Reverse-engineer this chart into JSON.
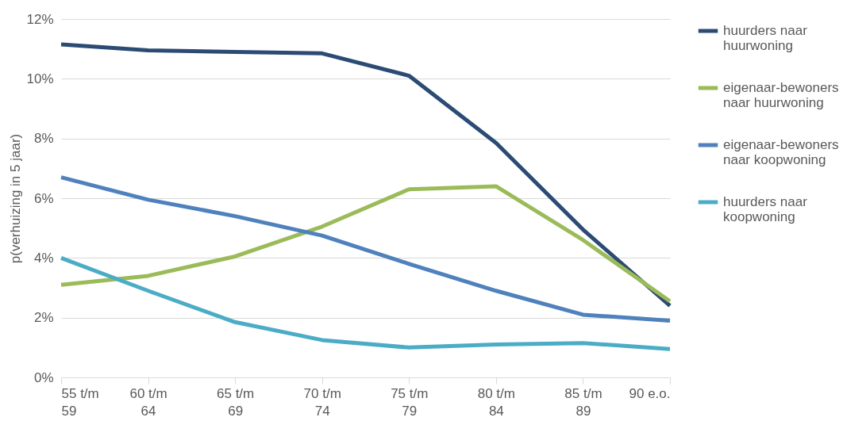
{
  "chart_data": {
    "type": "line",
    "ylabel": "p(verhuizing in 5 jaar)",
    "categories": [
      "55 t/m\n59",
      "60 t/m\n64",
      "65 t/m\n69",
      "70 t/m\n74",
      "75 t/m\n79",
      "80 t/m\n84",
      "85 t/m\n89",
      "90 e.o."
    ],
    "series": [
      {
        "name": "huurders naar huurwoning",
        "color": "#2c4b74",
        "values": [
          11.15,
          10.95,
          10.9,
          10.85,
          10.1,
          7.85,
          4.95,
          2.4
        ]
      },
      {
        "name": "eigenaar-bewoners naar huurwoning",
        "color": "#9bbb59",
        "values": [
          3.1,
          3.4,
          4.05,
          5.05,
          6.3,
          6.4,
          4.6,
          2.55
        ]
      },
      {
        "name": "eigenaar-bewoners naar koopwoning",
        "color": "#4f81bd",
        "values": [
          6.7,
          5.95,
          5.4,
          4.75,
          3.8,
          2.9,
          2.1,
          1.9
        ]
      },
      {
        "name": "huurders naar koopwoning",
        "color": "#4bacc6",
        "values": [
          4.0,
          2.9,
          1.85,
          1.25,
          1.0,
          1.1,
          1.15,
          0.95
        ]
      }
    ],
    "ylim": [
      0,
      12
    ],
    "yticks": [
      {
        "value": 0,
        "label": "0%"
      },
      {
        "value": 2,
        "label": "2%"
      },
      {
        "value": 4,
        "label": "4%"
      },
      {
        "value": 6,
        "label": "6%"
      },
      {
        "value": 8,
        "label": "8%"
      },
      {
        "value": 10,
        "label": "10%"
      },
      {
        "value": 12,
        "label": "12%"
      }
    ],
    "grid": "y",
    "legend": "right",
    "marker": "none",
    "line_style": "solid"
  }
}
